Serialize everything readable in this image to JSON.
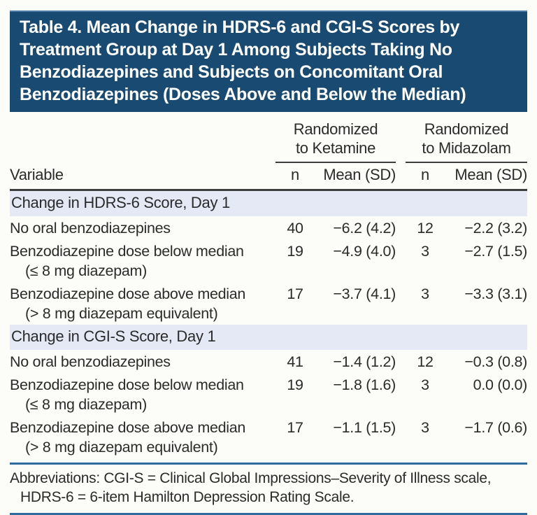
{
  "title": "Table 4. Mean Change in HDRS-6 and CGI-S Scores by\nTreatment Group at Day 1 Among Subjects Taking No\nBenzodiazepines and Subjects on Concomitant Oral\nBenzodiazepines (Doses Above and Below the Median)",
  "colors": {
    "header_bg": "#194a72",
    "section_band_bg": "#e5e9f5",
    "rule_blue": "#2e6ba0",
    "rule_dark": "#3e3e3e"
  },
  "table": {
    "group_headers": {
      "ketamine": "Randomized\nto Ketamine",
      "midazolam": "Randomized\nto Midazolam"
    },
    "column_headers": {
      "variable": "Variable",
      "n1": "n",
      "mean1": "Mean (SD)",
      "n2": "n",
      "mean2": "Mean (SD)"
    },
    "sections": [
      {
        "header": "Change in HDRS-6 Score, Day 1",
        "rows": [
          {
            "variable": "No oral benzodiazepines",
            "variable2": "",
            "k_n": "40",
            "k_mean": "−6.2 (4.2)",
            "m_n": "12",
            "m_mean": "−2.2 (3.2)"
          },
          {
            "variable": "Benzodiazepine dose below median",
            "variable2": "(≤ 8 mg diazepam)",
            "k_n": "19",
            "k_mean": "−4.9 (4.0)",
            "m_n": "3",
            "m_mean": "−2.7 (1.5)"
          },
          {
            "variable": "Benzodiazepine dose above median",
            "variable2": "(> 8 mg diazepam equivalent)",
            "k_n": "17",
            "k_mean": "−3.7 (4.1)",
            "m_n": "3",
            "m_mean": "−3.3 (3.1)"
          }
        ]
      },
      {
        "header": "Change in CGI-S Score, Day 1",
        "rows": [
          {
            "variable": "No oral benzodiazepines",
            "variable2": "",
            "k_n": "41",
            "k_mean": "−1.4 (1.2)",
            "m_n": "12",
            "m_mean": "−0.3 (0.8)"
          },
          {
            "variable": "Benzodiazepine dose below median",
            "variable2": "(≤ 8 mg diazepam)",
            "k_n": "19",
            "k_mean": "−1.8 (1.6)",
            "m_n": "3",
            "m_mean": "0.0 (0.0)"
          },
          {
            "variable": "Benzodiazepine dose above median",
            "variable2": "(> 8 mg diazepam equivalent)",
            "k_n": "17",
            "k_mean": "−1.1 (1.5)",
            "m_n": "3",
            "m_mean": "−1.7 (0.6)"
          }
        ]
      }
    ]
  },
  "footnote": {
    "line1": "Abbreviations: CGI-S = Clinical Global Impressions–Severity of Illness scale,",
    "line2": "HDRS-6 = 6-item Hamilton Depression Rating Scale."
  }
}
